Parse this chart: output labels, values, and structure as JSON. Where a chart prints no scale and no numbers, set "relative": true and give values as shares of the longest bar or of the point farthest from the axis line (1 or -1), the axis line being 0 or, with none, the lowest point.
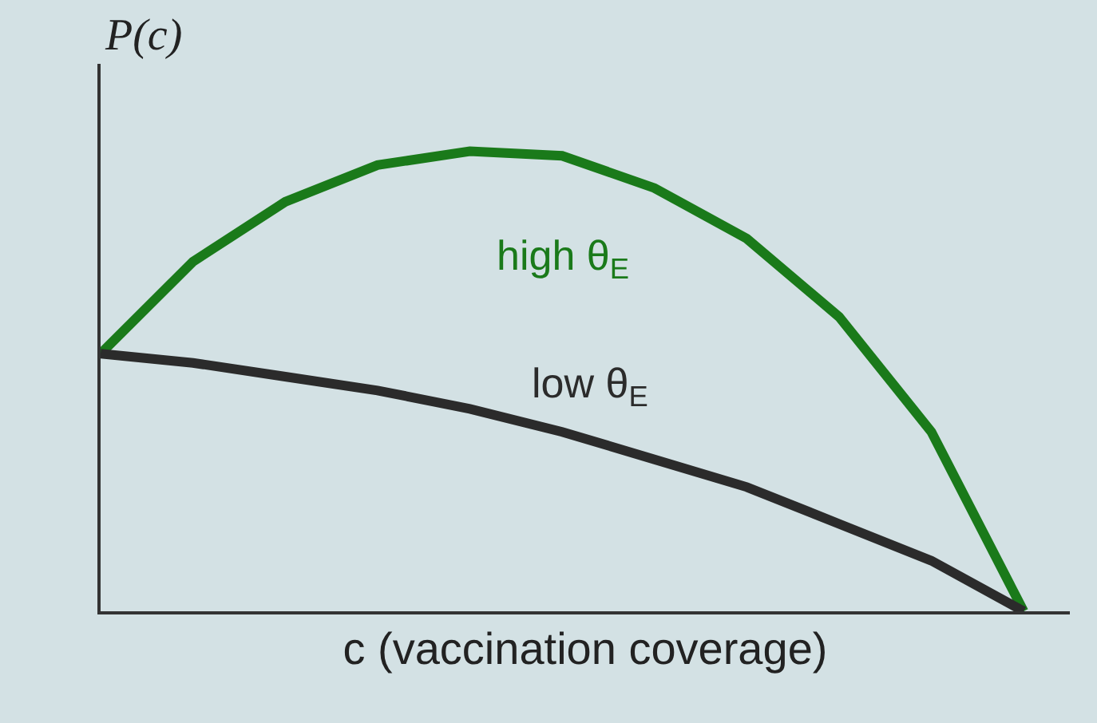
{
  "chart_data": {
    "type": "line",
    "relative": true,
    "ylabel": "P(c)",
    "xlabel": "c (vaccination coverage)",
    "categories": [
      null,
      null,
      null,
      null,
      null,
      null,
      null,
      null,
      null,
      null,
      null
    ],
    "series": [
      {
        "name": "high θ$_{E}$",
        "color": "#1a7a1a",
        "values": [
          0.56,
          0.76,
          0.89,
          0.97,
          1.0,
          0.99,
          0.92,
          0.81,
          0.64,
          0.39,
          0.0
        ]
      },
      {
        "name": "low θ$_{E}$",
        "color": "#2b2b2b",
        "values": [
          0.56,
          0.54,
          0.51,
          0.48,
          0.44,
          0.39,
          0.33,
          0.27,
          0.19,
          0.11,
          0.0
        ]
      }
    ],
    "legend": false,
    "marker": "none",
    "line_style": "solid",
    "grid": false
  }
}
